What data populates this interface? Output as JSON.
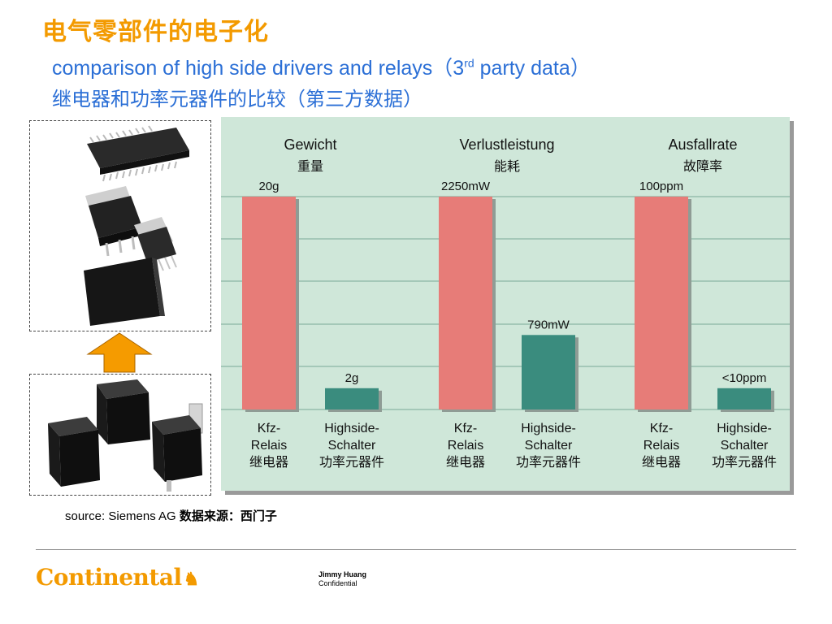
{
  "title": "电气零部件的电子化",
  "subtitle_en_main": "comparison of high side drivers and relays（3",
  "subtitle_en_sup": "rd",
  "subtitle_en_end": " party data）",
  "subtitle_cn": "继电器和功率元器件的比较（第三方数据）",
  "source_en": "source: Siemens AG ",
  "source_cn": "数据来源：西门子",
  "footer": {
    "logo_text": "Continental",
    "author_name": "Jimmy Huang",
    "author_note": "Confidential"
  },
  "colors": {
    "title": "#f39a00",
    "subtitle": "#2b6fd6",
    "relay_bar": "#e77c78",
    "semiconductor_bar": "#3a8c7e",
    "chart_bg": "#cfe7d9",
    "arrow": "#f59b00"
  },
  "chart_data": {
    "type": "bar",
    "groups": [
      {
        "title": "Gewicht",
        "title_cn": "重量",
        "bars": [
          {
            "category": [
              "Kfz-",
              "Relais",
              "继电器"
            ],
            "value_label": "20g",
            "value": 20,
            "series": "relay"
          },
          {
            "category": [
              "Highside-",
              "Schalter",
              "功率元器件"
            ],
            "value_label": "2g",
            "value": 2,
            "series": "semiconductor"
          }
        ]
      },
      {
        "title": "Verlustleistung",
        "title_cn": "能耗",
        "bars": [
          {
            "category": [
              "Kfz-",
              "Relais",
              "继电器"
            ],
            "value_label": "2250mW",
            "value": 2250,
            "series": "relay"
          },
          {
            "category": [
              "Highside-",
              "Schalter",
              "功率元器件"
            ],
            "value_label": "790mW",
            "value": 790,
            "series": "semiconductor"
          }
        ]
      },
      {
        "title": "Ausfallrate",
        "title_cn": "故障率",
        "bars": [
          {
            "category": [
              "Kfz-",
              "Relais",
              "继电器"
            ],
            "value_label": "100ppm",
            "value": 100,
            "series": "relay"
          },
          {
            "category": [
              "Highside-",
              "Schalter",
              "功率元器件"
            ],
            "value_label": "<10ppm",
            "value": 10,
            "series": "semiconductor"
          }
        ]
      }
    ],
    "relative_heights": [
      1,
      0.1,
      1,
      0.35,
      1,
      0.1
    ],
    "grid": true
  }
}
